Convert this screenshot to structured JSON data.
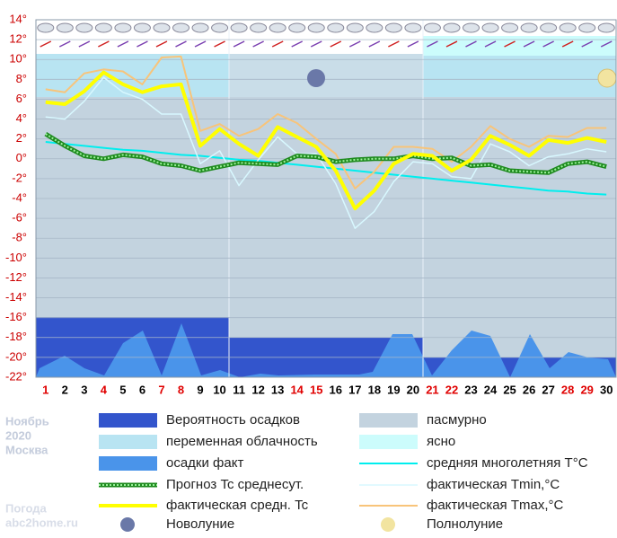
{
  "chart_data": {
    "type": "line",
    "caption": [
      "Ноябрь",
      "2020",
      "Москва"
    ],
    "watermark": [
      "Погода",
      "abc2home.ru"
    ],
    "categories": [
      "1",
      "2",
      "3",
      "4",
      "5",
      "6",
      "7",
      "8",
      "9",
      "10",
      "11",
      "12",
      "13",
      "14",
      "15",
      "16",
      "17",
      "18",
      "19",
      "20",
      "21",
      "22",
      "23",
      "24",
      "25",
      "26",
      "27",
      "28",
      "29",
      "30"
    ],
    "category_colors": [
      "#e00000",
      "#000000",
      "#000000",
      "#e00000",
      "#000000",
      "#000000",
      "#e00000",
      "#e00000",
      "#000000",
      "#000000",
      "#000000",
      "#000000",
      "#000000",
      "#e00000",
      "#e00000",
      "#000000",
      "#000000",
      "#000000",
      "#000000",
      "#000000",
      "#e00000",
      "#e00000",
      "#000000",
      "#000000",
      "#000000",
      "#000000",
      "#000000",
      "#e00000",
      "#e00000",
      "#000000"
    ],
    "ylim": [
      -22,
      14
    ],
    "yticks": [
      {
        "value": 14,
        "label": "14°"
      },
      {
        "value": 12,
        "label": "12°"
      },
      {
        "value": 10,
        "label": "10°"
      },
      {
        "value": 8,
        "label": "8°"
      },
      {
        "value": 6,
        "label": "6°"
      },
      {
        "value": 4,
        "label": "4°"
      },
      {
        "value": 2,
        "label": "2°"
      },
      {
        "value": 0,
        "label": "0°"
      },
      {
        "value": -2,
        "label": "-2°"
      },
      {
        "value": -4,
        "label": "-4°"
      },
      {
        "value": -6,
        "label": "-6°"
      },
      {
        "value": -8,
        "label": "-8°"
      },
      {
        "value": -10,
        "label": "-10°"
      },
      {
        "value": -12,
        "label": "-12°"
      },
      {
        "value": -14,
        "label": "-14°"
      },
      {
        "value": -16,
        "label": "-16°"
      },
      {
        "value": -18,
        "label": "-18°"
      },
      {
        "value": -20,
        "label": "-20°"
      },
      {
        "value": -22,
        "label": "-22°"
      }
    ],
    "ytick_color": "#cc0000",
    "grid": true,
    "series": [
      {
        "name": "средняя многолетняя T°C",
        "color": "#00eeee",
        "width": 2,
        "values": [
          1.7,
          1.5,
          1.3,
          1.1,
          0.9,
          0.8,
          0.6,
          0.4,
          0.3,
          0.1,
          -0.1,
          -0.2,
          -0.4,
          -0.6,
          -0.8,
          -1.0,
          -1.2,
          -1.4,
          -1.6,
          -1.8,
          -2.0,
          -2.2,
          -2.4,
          -2.6,
          -2.8,
          -3.0,
          -3.2,
          -3.3,
          -3.5,
          -3.6
        ]
      },
      {
        "name": "фактическая Tmin,°C",
        "color": "#d8f8ff",
        "width": 1.5,
        "values": [
          4.2,
          4.0,
          5.8,
          8.2,
          6.7,
          6.0,
          4.5,
          4.5,
          -0.5,
          0.8,
          -2.7,
          -0.1,
          2.2,
          0.5,
          0.5,
          -2.5,
          -7.0,
          -5.3,
          -2.3,
          -0.3,
          -0.5,
          -1.8,
          -2.0,
          1.5,
          0.7,
          -0.7,
          0.2,
          0.5,
          1.0,
          0.7
        ]
      },
      {
        "name": "фактическая Tmax,°C",
        "color": "#f8c47a",
        "width": 2,
        "values": [
          7.0,
          6.7,
          8.6,
          9.0,
          8.8,
          7.5,
          10.2,
          10.3,
          2.8,
          3.5,
          2.3,
          3.0,
          4.5,
          3.6,
          2.0,
          0.5,
          -3.0,
          -1.3,
          1.2,
          1.2,
          1.0,
          -0.3,
          1.2,
          3.3,
          2.0,
          1.2,
          2.3,
          2.2,
          3.1,
          3.1
        ]
      },
      {
        "name": "Прогноз Tc среднесут.",
        "color": "#1e8a1e",
        "width": 5,
        "style": "dotted",
        "values": [
          2.5,
          1.3,
          0.3,
          0.0,
          0.4,
          0.2,
          -0.5,
          -0.7,
          -1.2,
          -0.8,
          -0.4,
          -0.5,
          -0.6,
          0.3,
          0.2,
          -0.3,
          -0.1,
          0.0,
          0.0,
          0.3,
          0.0,
          0.1,
          -0.7,
          -0.6,
          -1.2,
          -1.3,
          -1.4,
          -0.5,
          -0.3,
          -0.8
        ]
      },
      {
        "name": "фактическая средн. Tc",
        "color": "#ffff00",
        "width": 4,
        "values": [
          5.7,
          5.5,
          6.8,
          8.7,
          7.5,
          6.7,
          7.3,
          7.5,
          1.3,
          3.0,
          1.5,
          0.3,
          3.2,
          2.2,
          1.2,
          -1.2,
          -5.0,
          -3.2,
          -0.5,
          0.5,
          0.3,
          -1.2,
          -0.1,
          2.3,
          1.4,
          0.3,
          1.9,
          1.6,
          2.1,
          1.7
        ]
      }
    ],
    "legend_items": [
      {
        "name": "Вероятность осадков",
        "color": "#3355cc",
        "kind": "rect"
      },
      {
        "name": "переменная облачность",
        "color": "#b8e4f2",
        "kind": "rect"
      },
      {
        "name": "осадки факт",
        "color": "#4a94ea",
        "kind": "rect"
      },
      {
        "name": "Новолуние",
        "color": "#6a78a8",
        "kind": "moon"
      },
      {
        "name": "пасмурно",
        "color": "#c3d3df",
        "kind": "rect"
      },
      {
        "name": "ясно",
        "color": "#ccfcfc",
        "kind": "rect"
      },
      {
        "name": "Полнолуние",
        "color": "#f2e4a0",
        "kind": "moon"
      }
    ]
  }
}
